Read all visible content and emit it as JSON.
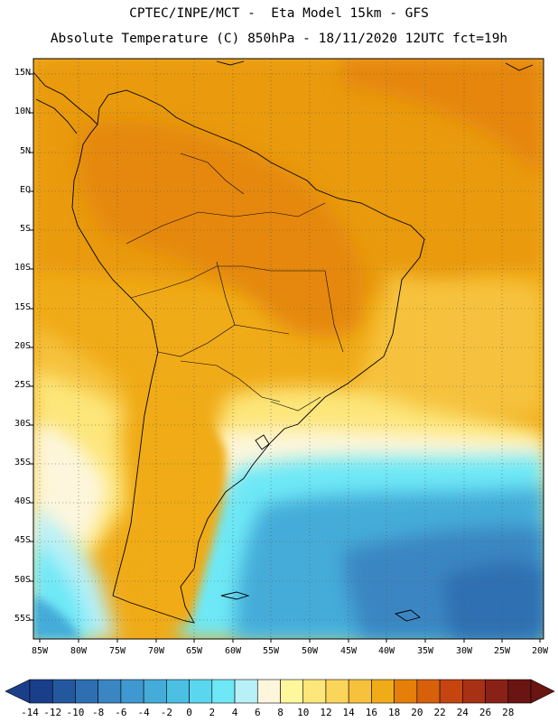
{
  "title_line1": "CPTEC/INPE/MCT -  Eta Model 15km - GFS",
  "title_line2": "Absolute Temperature (C) 850hPa - 18/11/2020 12UTC fct=19h",
  "lat_labels": [
    "15N",
    "10N",
    "5N",
    "EQ",
    "5S",
    "10S",
    "15S",
    "20S",
    "25S",
    "30S",
    "35S",
    "40S",
    "45S",
    "50S",
    "55S"
  ],
  "lon_labels": [
    "85W",
    "80W",
    "75W",
    "70W",
    "65W",
    "60W",
    "55W",
    "50W",
    "45W",
    "40W",
    "35W",
    "30W",
    "25W",
    "20W"
  ],
  "colorbar": {
    "labels": [
      "-14",
      "-12",
      "-10",
      "-8",
      "-6",
      "-4",
      "-2",
      "0",
      "2",
      "4",
      "6",
      "8",
      "10",
      "12",
      "14",
      "16",
      "18",
      "20",
      "22",
      "24",
      "26",
      "28"
    ],
    "colors": [
      "#1a3f8a",
      "#24589e",
      "#2f6fb1",
      "#3a86c2",
      "#3f98cf",
      "#45acd9",
      "#4bc0e3",
      "#5ad6ee",
      "#6ee8f6",
      "#b8f0f8",
      "#fdf6dc",
      "#fff79c",
      "#fde67a",
      "#fbd45a",
      "#f6c23c",
      "#f0ab18",
      "#e57f0a",
      "#d8600a",
      "#c44510",
      "#a83015",
      "#8a2116",
      "#6a1512"
    ]
  },
  "map": {
    "background_color": "#f5c22e",
    "extent_lon": [
      -85,
      -20
    ],
    "extent_lat": [
      -57,
      16
    ]
  }
}
